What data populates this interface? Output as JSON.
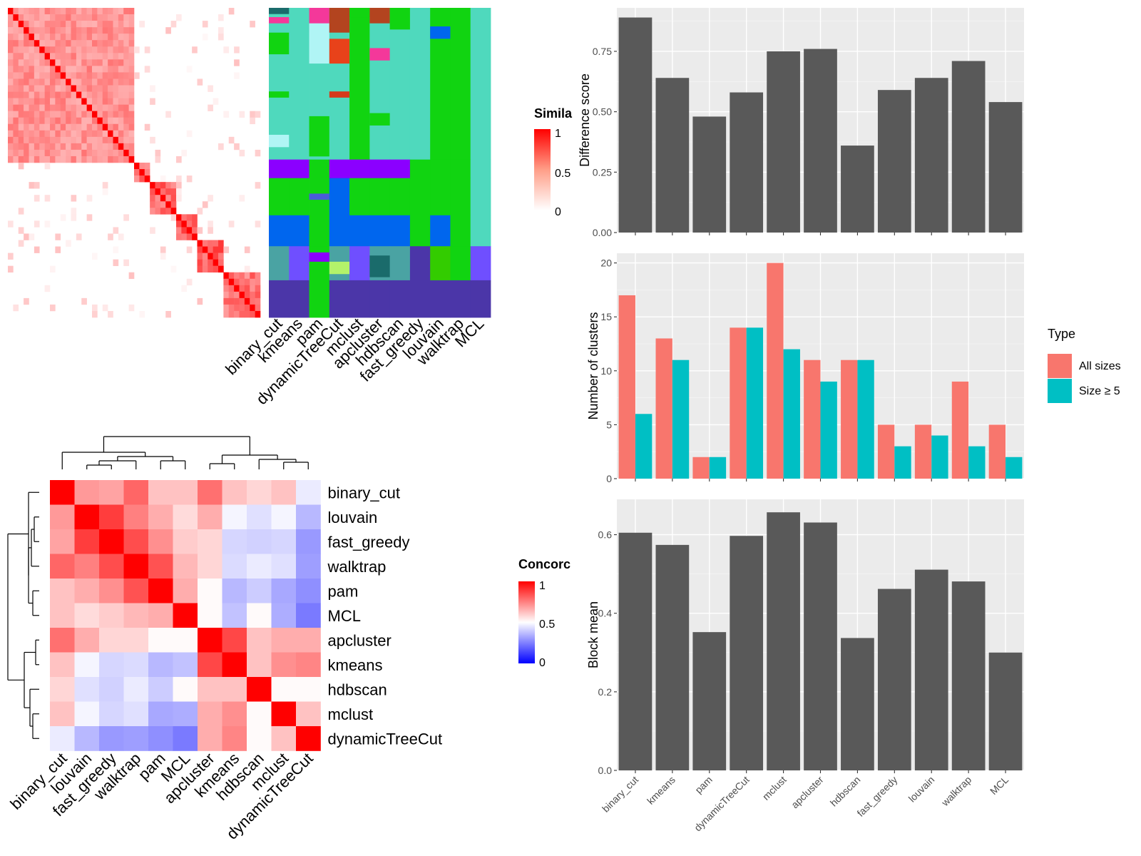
{
  "colors": {
    "panel_bg": "#ebebeb",
    "bar_gray": "#595959",
    "salmon": "#f8766d",
    "teal": "#00bfc4",
    "sim_high": "#ff0000",
    "conc_low": "#0000ff"
  },
  "similarity_legend": {
    "title": "Simila",
    "ticks": [
      "1",
      "0.5",
      "0"
    ]
  },
  "concordance_legend": {
    "title": "Concorc",
    "ticks": [
      "1",
      "0.5",
      "0"
    ]
  },
  "type_legend": {
    "title": "Type",
    "items": [
      "All sizes",
      "Size ≥ 5"
    ]
  },
  "membership_methods": [
    "binary_cut",
    "kmeans",
    "pam",
    "dynamicTreeCut",
    "mclust",
    "apcluster",
    "hdbscan",
    "fast_greedy",
    "louvain",
    "walktrap",
    "MCL"
  ],
  "chart_data": [
    {
      "type": "heatmap",
      "name": "similarity",
      "x": [],
      "y": [],
      "note": ""
    },
    {
      "type": "heatmap",
      "name": "concordance",
      "rows": [
        "binary_cut",
        "louvain",
        "fast_greedy",
        "walktrap",
        "pam",
        "MCL",
        "apcluster",
        "kmeans",
        "hdbscan",
        "mclust",
        "dynamicTreeCut"
      ],
      "columns": [
        "binary_cut",
        "louvain",
        "fast_greedy",
        "walktrap",
        "pam",
        "MCL",
        "apcluster",
        "kmeans",
        "hdbscan",
        "mclust",
        "dynamicTreeCut"
      ],
      "values": [
        [
          1.0,
          0.7,
          0.68,
          0.8,
          0.62,
          0.62,
          0.78,
          0.62,
          0.58,
          0.62,
          0.46
        ],
        [
          0.7,
          1.0,
          0.88,
          0.75,
          0.66,
          0.57,
          0.66,
          0.48,
          0.44,
          0.48,
          0.36
        ],
        [
          0.68,
          0.88,
          1.0,
          0.85,
          0.72,
          0.6,
          0.58,
          0.42,
          0.41,
          0.42,
          0.3
        ],
        [
          0.8,
          0.75,
          0.85,
          1.0,
          0.84,
          0.64,
          0.58,
          0.43,
          0.46,
          0.44,
          0.31
        ],
        [
          0.62,
          0.66,
          0.72,
          0.84,
          1.0,
          0.66,
          0.51,
          0.36,
          0.4,
          0.33,
          0.28
        ],
        [
          0.62,
          0.57,
          0.6,
          0.64,
          0.66,
          1.0,
          0.51,
          0.38,
          0.51,
          0.34,
          0.24
        ],
        [
          0.78,
          0.66,
          0.58,
          0.58,
          0.51,
          0.51,
          1.0,
          0.86,
          0.62,
          0.66,
          0.66
        ],
        [
          0.62,
          0.48,
          0.42,
          0.43,
          0.36,
          0.38,
          0.86,
          1.0,
          0.62,
          0.72,
          0.74
        ],
        [
          0.58,
          0.44,
          0.41,
          0.46,
          0.4,
          0.51,
          0.62,
          0.62,
          1.0,
          0.51,
          0.51
        ],
        [
          0.62,
          0.48,
          0.42,
          0.44,
          0.33,
          0.34,
          0.66,
          0.72,
          0.51,
          1.0,
          0.62
        ],
        [
          0.46,
          0.36,
          0.3,
          0.31,
          0.28,
          0.24,
          0.66,
          0.74,
          0.51,
          0.62,
          1.0
        ]
      ]
    },
    {
      "type": "bar",
      "name": "difference",
      "categories": [
        "binary_cut",
        "kmeans",
        "pam",
        "dynamicTreeCut",
        "mclust",
        "apcluster",
        "hdbscan",
        "fast_greedy",
        "louvain",
        "walktrap",
        "MCL"
      ],
      "values": [
        0.89,
        0.64,
        0.48,
        0.58,
        0.75,
        0.76,
        0.36,
        0.59,
        0.64,
        0.71,
        0.54
      ],
      "ylabel": "Difference score",
      "ylim": [
        0,
        0.93
      ],
      "yticks": [
        "0.00",
        "0.25",
        "0.50",
        "0.75"
      ],
      "ytick_values": [
        0,
        0.25,
        0.5,
        0.75
      ]
    },
    {
      "type": "bar",
      "name": "num_clusters",
      "categories": [
        "binary_cut",
        "kmeans",
        "pam",
        "dynamicTreeCut",
        "mclust",
        "apcluster",
        "hdbscan",
        "fast_greedy",
        "louvain",
        "walktrap",
        "MCL"
      ],
      "series": [
        {
          "name": "All sizes",
          "values": [
            17,
            13,
            2,
            14,
            20,
            11,
            11,
            5,
            5,
            9,
            5
          ]
        },
        {
          "name": "Size ≥ 5",
          "values": [
            6,
            11,
            2,
            14,
            12,
            9,
            11,
            3,
            4,
            3,
            2
          ]
        }
      ],
      "ylabel": "Number of clusters",
      "ylim": [
        0,
        20.9
      ],
      "yticks": [
        "0",
        "5",
        "10",
        "15",
        "20"
      ],
      "ytick_values": [
        0,
        5,
        10,
        15,
        20
      ]
    },
    {
      "type": "bar",
      "name": "block_mean",
      "categories": [
        "binary_cut",
        "kmeans",
        "pam",
        "dynamicTreeCut",
        "mclust",
        "apcluster",
        "hdbscan",
        "fast_greedy",
        "louvain",
        "walktrap",
        "MCL"
      ],
      "values": [
        0.605,
        0.574,
        0.352,
        0.597,
        0.657,
        0.631,
        0.337,
        0.462,
        0.511,
        0.481,
        0.3
      ],
      "ylabel": "Block mean",
      "ylim": [
        0,
        0.69
      ],
      "yticks": [
        "0.0",
        "0.2",
        "0.4",
        "0.6"
      ],
      "ytick_values": [
        0,
        0.2,
        0.4,
        0.6
      ]
    }
  ]
}
